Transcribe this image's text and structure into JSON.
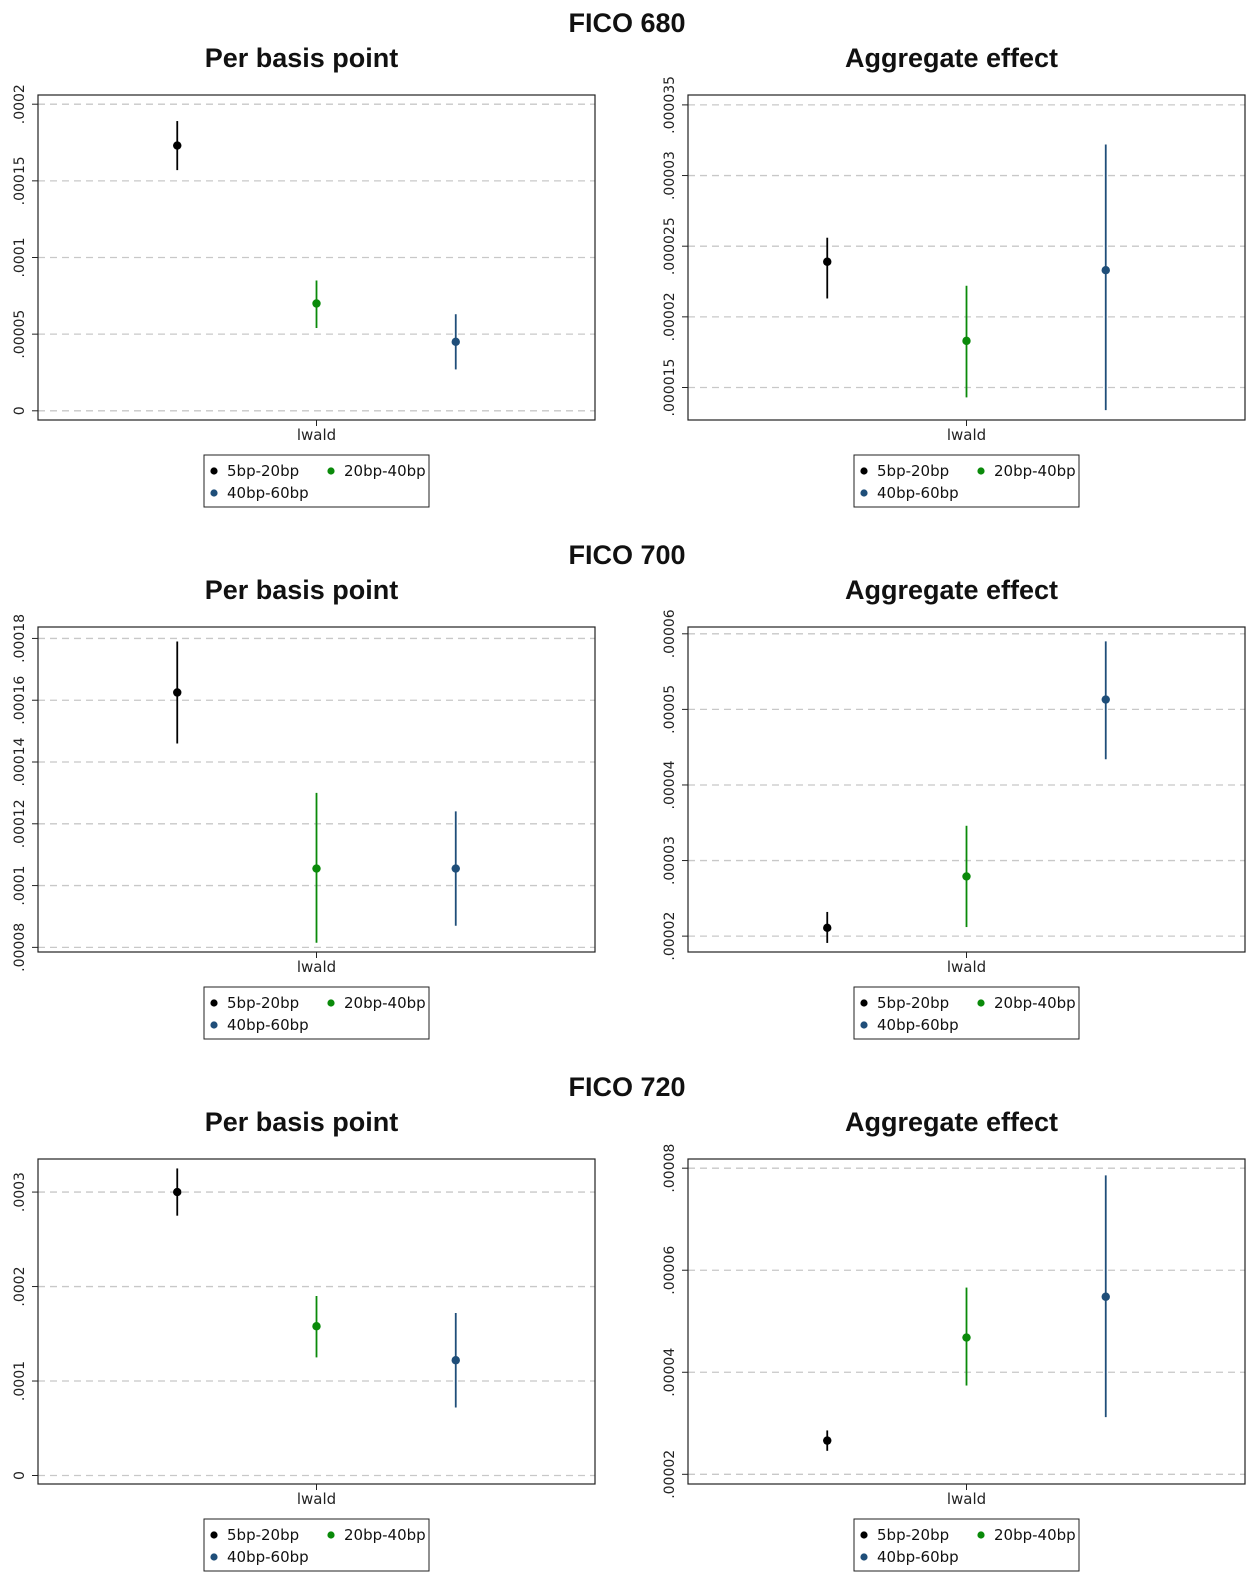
{
  "panels": [
    {
      "title": "FICO 680"
    },
    {
      "title": "FICO 700"
    },
    {
      "title": "FICO 720"
    }
  ],
  "legend": {
    "entries": [
      {
        "name": "5bp-20bp",
        "color": "#000000"
      },
      {
        "name": "20bp-40bp",
        "color": "#0a8a0a"
      },
      {
        "name": "40bp-60bp",
        "color": "#1f4e79"
      }
    ]
  },
  "chart_data": [
    {
      "type": "scatter",
      "title": "Per basis point",
      "category": "lwald",
      "ylim": [
        -6e-06,
        0.000206
      ],
      "yticks": [
        "0",
        ".00005",
        ".0001",
        ".00015",
        ".0002"
      ],
      "ytick_values": [
        0,
        5e-05,
        0.0001,
        0.00015,
        0.0002
      ],
      "grid": true,
      "legend_placement": "bottom",
      "series": [
        {
          "name": "5bp-20bp",
          "x": 0.25,
          "y": 0.000173,
          "ci": [
            0.000157,
            0.000189
          ],
          "color": "#000000"
        },
        {
          "name": "20bp-40bp",
          "x": 0.5,
          "y": 7e-05,
          "ci": [
            5.4e-05,
            8.5e-05
          ],
          "color": "#0a8a0a"
        },
        {
          "name": "40bp-60bp",
          "x": 0.75,
          "y": 4.5e-05,
          "ci": [
            2.7e-05,
            6.3e-05
          ],
          "color": "#1f4e79"
        }
      ]
    },
    {
      "type": "scatter",
      "title": "Aggregate effect",
      "category": "lwald",
      "ylim": [
        1.27e-05,
        3.57e-05
      ],
      "yticks": [
        ".000015",
        ".00002",
        ".000025",
        ".00003",
        ".000035"
      ],
      "ytick_values": [
        1.5e-05,
        2e-05,
        2.5e-05,
        3e-05,
        3.5e-05
      ],
      "grid": true,
      "legend_placement": "bottom",
      "series": [
        {
          "name": "5bp-20bp",
          "x": 0.25,
          "y": 2.39e-05,
          "ci": [
            2.13e-05,
            2.56e-05
          ],
          "color": "#000000"
        },
        {
          "name": "20bp-40bp",
          "x": 0.5,
          "y": 1.83e-05,
          "ci": [
            1.43e-05,
            2.22e-05
          ],
          "color": "#0a8a0a"
        },
        {
          "name": "40bp-60bp",
          "x": 0.75,
          "y": 2.33e-05,
          "ci": [
            1.34e-05,
            3.22e-05
          ],
          "color": "#1f4e79"
        }
      ]
    },
    {
      "type": "scatter",
      "title": "Per basis point",
      "category": "lwald",
      "ylim": [
        7.85e-05,
        0.0001837
      ],
      "yticks": [
        ".00008",
        ".0001",
        ".00012",
        ".00014",
        ".00016",
        ".00018"
      ],
      "ytick_values": [
        8e-05,
        0.0001,
        0.00012,
        0.00014,
        0.00016,
        0.00018
      ],
      "grid": true,
      "legend_placement": "bottom",
      "series": [
        {
          "name": "5bp-20bp",
          "x": 0.25,
          "y": 0.0001625,
          "ci": [
            0.000146,
            0.000179
          ],
          "color": "#000000"
        },
        {
          "name": "20bp-40bp",
          "x": 0.5,
          "y": 0.0001055,
          "ci": [
            8.15e-05,
            0.00013
          ],
          "color": "#0a8a0a"
        },
        {
          "name": "40bp-60bp",
          "x": 0.75,
          "y": 0.0001055,
          "ci": [
            8.7e-05,
            0.000124
          ],
          "color": "#1f4e79"
        }
      ]
    },
    {
      "type": "scatter",
      "title": "Aggregate effect",
      "category": "lwald",
      "ylim": [
        1.79e-05,
        6.09e-05
      ],
      "yticks": [
        ".00002",
        ".00003",
        ".00004",
        ".00005",
        ".00006"
      ],
      "ytick_values": [
        2e-05,
        3e-05,
        4e-05,
        5e-05,
        6e-05
      ],
      "grid": true,
      "legend_placement": "bottom",
      "series": [
        {
          "name": "5bp-20bp",
          "x": 0.25,
          "y": 2.11e-05,
          "ci": [
            1.91e-05,
            2.32e-05
          ],
          "color": "#000000"
        },
        {
          "name": "20bp-40bp",
          "x": 0.5,
          "y": 2.79e-05,
          "ci": [
            2.12e-05,
            3.46e-05
          ],
          "color": "#0a8a0a"
        },
        {
          "name": "40bp-60bp",
          "x": 0.75,
          "y": 5.13e-05,
          "ci": [
            4.34e-05,
            5.9e-05
          ],
          "color": "#1f4e79"
        }
      ]
    },
    {
      "type": "scatter",
      "title": "Per basis point",
      "category": "lwald",
      "ylim": [
        -9e-06,
        0.000335
      ],
      "yticks": [
        "0",
        ".0001",
        ".0002",
        ".0003"
      ],
      "ytick_values": [
        0,
        0.0001,
        0.0002,
        0.0003
      ],
      "grid": true,
      "legend_placement": "bottom",
      "series": [
        {
          "name": "5bp-20bp",
          "x": 0.25,
          "y": 0.0003,
          "ci": [
            0.000275,
            0.000325
          ],
          "color": "#000000"
        },
        {
          "name": "20bp-40bp",
          "x": 0.5,
          "y": 0.000158,
          "ci": [
            0.000125,
            0.00019
          ],
          "color": "#0a8a0a"
        },
        {
          "name": "40bp-60bp",
          "x": 0.75,
          "y": 0.000122,
          "ci": [
            7.2e-05,
            0.000172
          ],
          "color": "#1f4e79"
        }
      ]
    },
    {
      "type": "scatter",
      "title": "Aggregate effect",
      "category": "lwald",
      "ylim": [
        1.81e-05,
        8.18e-05
      ],
      "yticks": [
        ".00002",
        ".00004",
        ".00006",
        ".00008"
      ],
      "ytick_values": [
        2e-05,
        4e-05,
        6e-05,
        8e-05
      ],
      "grid": true,
      "legend_placement": "bottom",
      "series": [
        {
          "name": "5bp-20bp",
          "x": 0.25,
          "y": 2.66e-05,
          "ci": [
            2.46e-05,
            2.86e-05
          ],
          "color": "#000000"
        },
        {
          "name": "20bp-40bp",
          "x": 0.5,
          "y": 4.68e-05,
          "ci": [
            3.74e-05,
            5.66e-05
          ],
          "color": "#0a8a0a"
        },
        {
          "name": "40bp-60bp",
          "x": 0.75,
          "y": 5.48e-05,
          "ci": [
            3.12e-05,
            7.86e-05
          ],
          "color": "#1f4e79"
        }
      ]
    }
  ]
}
